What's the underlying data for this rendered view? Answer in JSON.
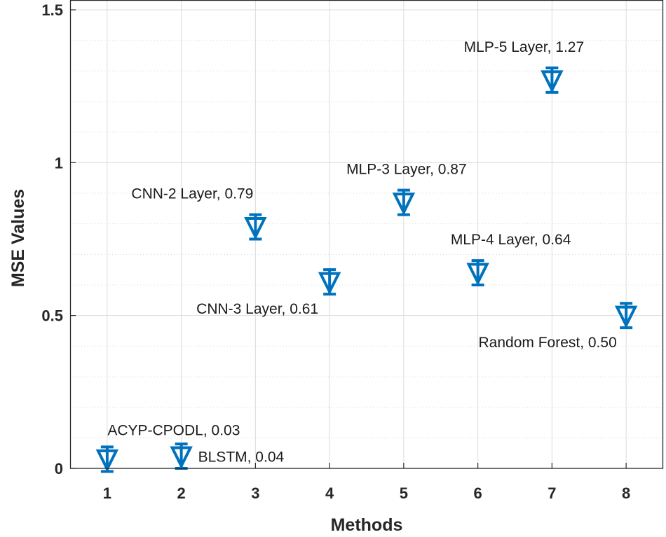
{
  "chart_data": {
    "type": "scatter",
    "title": "",
    "xlabel": "Methods",
    "ylabel": "MSE Values",
    "xlim": [
      0.5,
      8.5
    ],
    "ylim": [
      0,
      1.5
    ],
    "xticks": [
      "1",
      "2",
      "3",
      "4",
      "5",
      "6",
      "7",
      "8"
    ],
    "yticks": [
      "0",
      "0.5",
      "1",
      "1.5"
    ],
    "grid": true,
    "marker": "down-triangle",
    "marker_color": "#0072BD",
    "points": [
      {
        "x": 1,
        "y": 0.03,
        "err": 0.04,
        "label": "ACYP-CPODL, 0.03",
        "label_side": "above"
      },
      {
        "x": 2,
        "y": 0.04,
        "err": 0.04,
        "label": "BLSTM, 0.04",
        "label_side": "right"
      },
      {
        "x": 3,
        "y": 0.79,
        "err": 0.04,
        "label": "CNN-2 Layer, 0.79",
        "label_side": "above-left"
      },
      {
        "x": 4,
        "y": 0.61,
        "err": 0.04,
        "label": "CNN-3 Layer, 0.61",
        "label_side": "below-left"
      },
      {
        "x": 5,
        "y": 0.87,
        "err": 0.04,
        "label": "MLP-3 Layer, 0.87",
        "label_side": "above-right"
      },
      {
        "x": 6,
        "y": 0.64,
        "err": 0.04,
        "label": "MLP-4 Layer, 0.64",
        "label_side": "above-right"
      },
      {
        "x": 7,
        "y": 1.27,
        "err": 0.04,
        "label": "MLP-5 Layer, 1.27",
        "label_side": "above-left"
      },
      {
        "x": 8,
        "y": 0.5,
        "err": 0.04,
        "label": "Random Forest, 0.50",
        "label_side": "below-left"
      }
    ]
  }
}
